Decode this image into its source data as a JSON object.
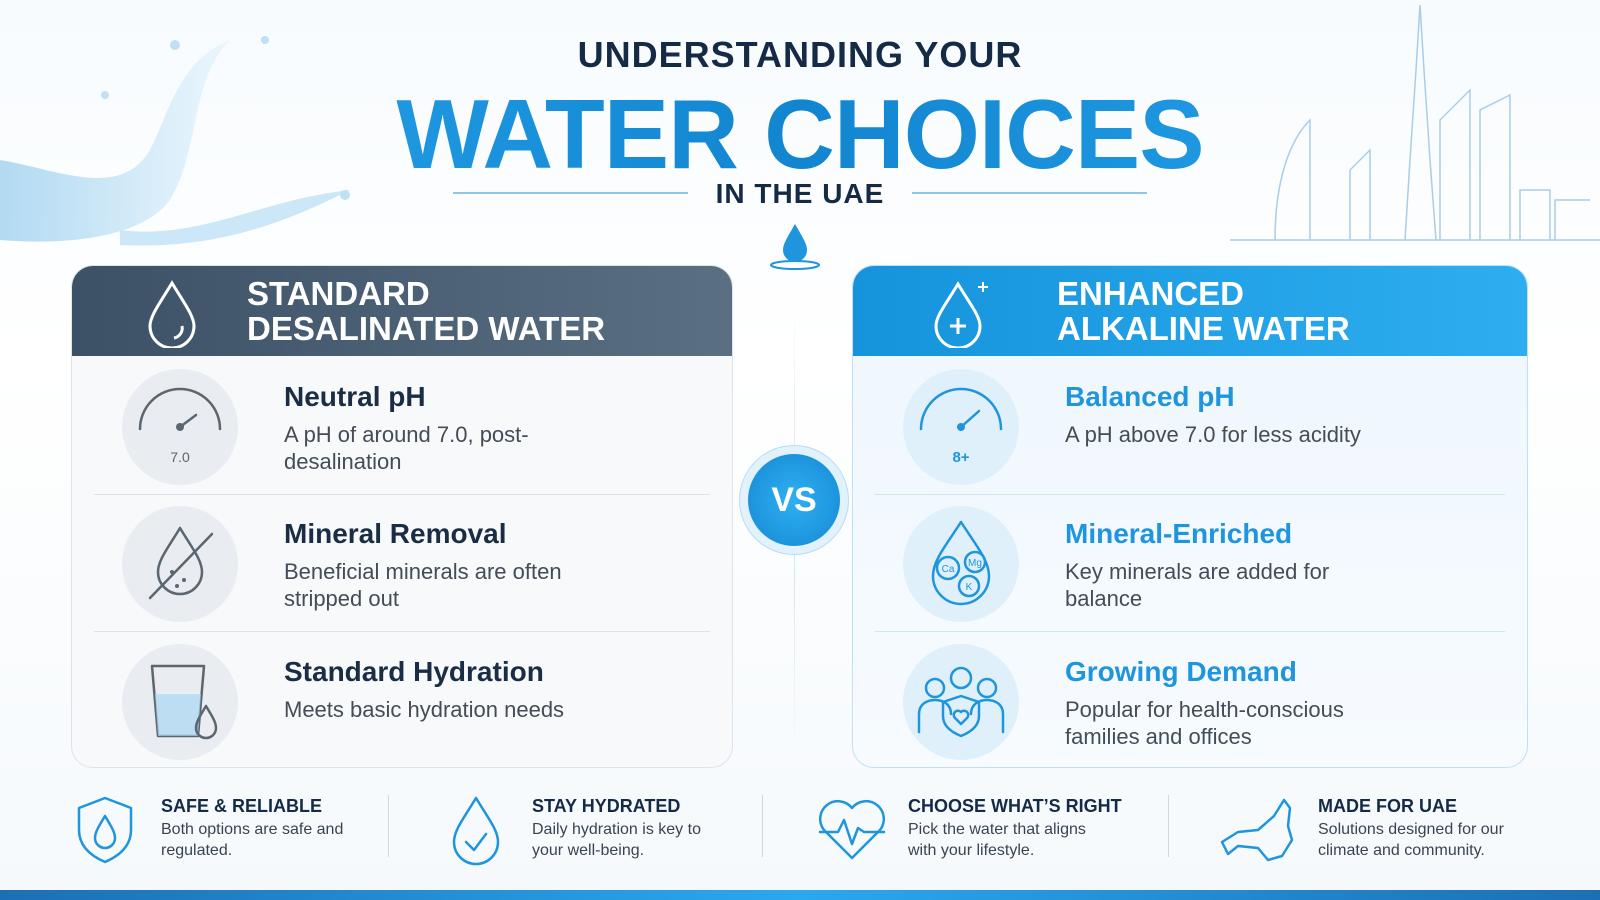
{
  "header": {
    "eyebrow": "UNDERSTANDING YOUR",
    "title": "WATER CHOICES",
    "subtitle": "IN THE UAE"
  },
  "left_panel": {
    "title_lines": [
      "STANDARD",
      "DESALINATED WATER"
    ],
    "items": [
      {
        "title": "Neutral pH",
        "text": "A pH of around 7.0, post-desalination",
        "icon_label": "7.0"
      },
      {
        "title": "Mineral Removal",
        "text": "Beneficial minerals are often stripped out"
      },
      {
        "title": "Standard Hydration",
        "text": "Meets basic hydration needs"
      }
    ]
  },
  "vs": "VS",
  "right_panel": {
    "title_lines": [
      "ENHANCED",
      "ALKALINE WATER"
    ],
    "items": [
      {
        "title": "Balanced pH",
        "text": "A pH above 7.0 for less acidity",
        "icon_label": "8+"
      },
      {
        "title": "Mineral-Enriched",
        "text": "Key minerals are added for balance",
        "icon_labels": [
          "Ca",
          "Mg",
          "K"
        ]
      },
      {
        "title": "Growing Demand",
        "text": "Popular for health-conscious families and offices"
      }
    ]
  },
  "footer": [
    {
      "title": "SAFE & RELIABLE",
      "text": "Both options are safe and regulated."
    },
    {
      "title": "STAY HYDRATED",
      "text": "Daily hydration is key to your well-being."
    },
    {
      "title": "CHOOSE WHAT’S RIGHT",
      "text": "Pick the water that aligns with your lifestyle."
    },
    {
      "title": "MADE FOR UAE",
      "text": "Solutions designed for our climate and community."
    }
  ]
}
